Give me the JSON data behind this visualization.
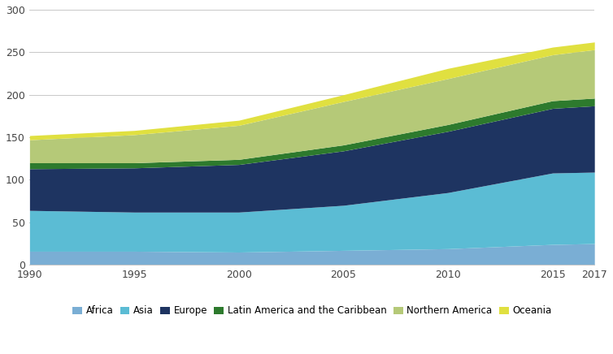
{
  "years": [
    1990,
    1995,
    2000,
    2005,
    2010,
    2015,
    2017
  ],
  "series": {
    "Africa": [
      16,
      16,
      15,
      17,
      19,
      24,
      25
    ],
    "Asia": [
      48,
      46,
      47,
      53,
      66,
      84,
      84
    ],
    "Europe": [
      49,
      52,
      56,
      64,
      72,
      76,
      78
    ],
    "Latin America and the Caribbean": [
      7,
      6,
      6,
      7,
      8,
      9,
      9
    ],
    "Northern America": [
      27,
      33,
      40,
      51,
      54,
      54,
      57
    ],
    "Oceania": [
      5,
      5,
      6,
      8,
      12,
      9,
      9
    ]
  },
  "colors": {
    "Africa": "#7aaed4",
    "Asia": "#5bbcd4",
    "Europe": "#1e3461",
    "Latin America and the Caribbean": "#2d7a2d",
    "Northern America": "#b5c978",
    "Oceania": "#e0e040"
  },
  "ylim": [
    0,
    300
  ],
  "yticks": [
    0,
    50,
    100,
    150,
    200,
    250,
    300
  ],
  "xticks": [
    1990,
    1995,
    2000,
    2005,
    2010,
    2015,
    2017
  ],
  "legend_order": [
    "Africa",
    "Asia",
    "Europe",
    "Latin America and the Caribbean",
    "Northern America",
    "Oceania"
  ],
  "background_color": "#ffffff",
  "grid_color": "#c8c8c8"
}
